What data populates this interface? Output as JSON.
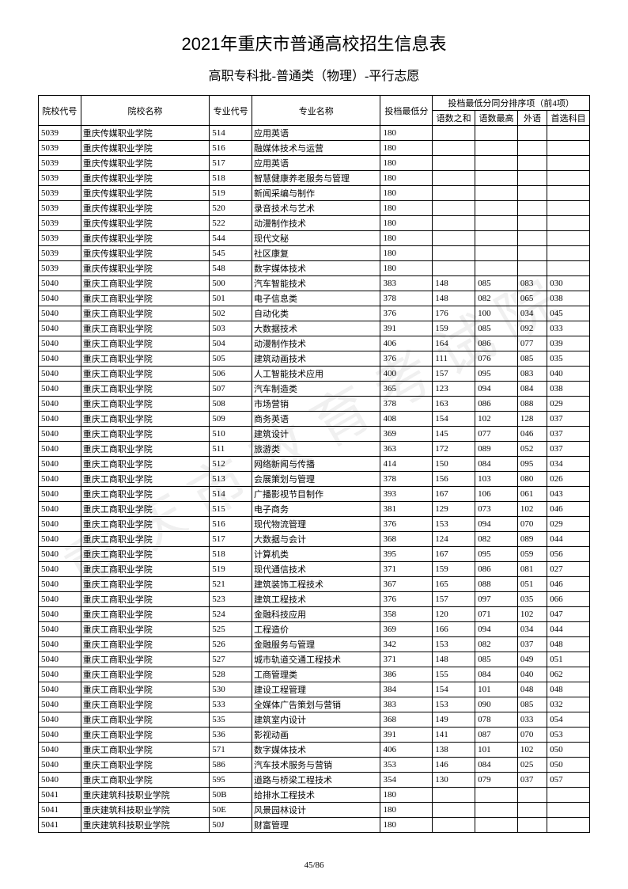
{
  "title": "2021年重庆市普通高校招生信息表",
  "subtitle": "高职专科批-普通类（物理）-平行志愿",
  "watermark": "重庆市教育考试院",
  "headers": {
    "school_code": "院校代号",
    "school_name": "院校名称",
    "major_code": "专业代号",
    "major_name": "专业名称",
    "min_score": "投档最低分",
    "tiebreak_group": "投档最低分同分排序项（前4项）",
    "sub1": "语数之和",
    "sub2": "语数最高",
    "sub3": "外语",
    "sub4": "首选科目"
  },
  "rows": [
    [
      "5039",
      "重庆传媒职业学院",
      "514",
      "应用英语",
      "180",
      "",
      "",
      "",
      ""
    ],
    [
      "5039",
      "重庆传媒职业学院",
      "516",
      "融媒体技术与运营",
      "180",
      "",
      "",
      "",
      ""
    ],
    [
      "5039",
      "重庆传媒职业学院",
      "517",
      "应用英语",
      "180",
      "",
      "",
      "",
      ""
    ],
    [
      "5039",
      "重庆传媒职业学院",
      "518",
      "智慧健康养老服务与管理",
      "180",
      "",
      "",
      "",
      ""
    ],
    [
      "5039",
      "重庆传媒职业学院",
      "519",
      "新闻采编与制作",
      "180",
      "",
      "",
      "",
      ""
    ],
    [
      "5039",
      "重庆传媒职业学院",
      "520",
      "录音技术与艺术",
      "180",
      "",
      "",
      "",
      ""
    ],
    [
      "5039",
      "重庆传媒职业学院",
      "522",
      "动漫制作技术",
      "180",
      "",
      "",
      "",
      ""
    ],
    [
      "5039",
      "重庆传媒职业学院",
      "544",
      "现代文秘",
      "180",
      "",
      "",
      "",
      ""
    ],
    [
      "5039",
      "重庆传媒职业学院",
      "545",
      "社区康复",
      "180",
      "",
      "",
      "",
      ""
    ],
    [
      "5039",
      "重庆传媒职业学院",
      "548",
      "数字媒体技术",
      "180",
      "",
      "",
      "",
      ""
    ],
    [
      "5040",
      "重庆工商职业学院",
      "500",
      "汽车智能技术",
      "383",
      "148",
      "085",
      "083",
      "030"
    ],
    [
      "5040",
      "重庆工商职业学院",
      "501",
      "电子信息类",
      "378",
      "148",
      "082",
      "065",
      "038"
    ],
    [
      "5040",
      "重庆工商职业学院",
      "502",
      "自动化类",
      "376",
      "176",
      "100",
      "034",
      "045"
    ],
    [
      "5040",
      "重庆工商职业学院",
      "503",
      "大数据技术",
      "391",
      "159",
      "085",
      "092",
      "033"
    ],
    [
      "5040",
      "重庆工商职业学院",
      "504",
      "动漫制作技术",
      "406",
      "164",
      "086",
      "077",
      "039"
    ],
    [
      "5040",
      "重庆工商职业学院",
      "505",
      "建筑动画技术",
      "376",
      "111",
      "076",
      "085",
      "035"
    ],
    [
      "5040",
      "重庆工商职业学院",
      "506",
      "人工智能技术应用",
      "400",
      "157",
      "095",
      "083",
      "040"
    ],
    [
      "5040",
      "重庆工商职业学院",
      "507",
      "汽车制造类",
      "365",
      "123",
      "094",
      "084",
      "038"
    ],
    [
      "5040",
      "重庆工商职业学院",
      "508",
      "市场营销",
      "378",
      "163",
      "086",
      "088",
      "029"
    ],
    [
      "5040",
      "重庆工商职业学院",
      "509",
      "商务英语",
      "408",
      "154",
      "102",
      "128",
      "037"
    ],
    [
      "5040",
      "重庆工商职业学院",
      "510",
      "建筑设计",
      "369",
      "145",
      "077",
      "046",
      "037"
    ],
    [
      "5040",
      "重庆工商职业学院",
      "511",
      "旅游类",
      "363",
      "172",
      "089",
      "052",
      "037"
    ],
    [
      "5040",
      "重庆工商职业学院",
      "512",
      "网络新闻与传播",
      "414",
      "150",
      "084",
      "095",
      "034"
    ],
    [
      "5040",
      "重庆工商职业学院",
      "513",
      "会展策划与管理",
      "378",
      "156",
      "103",
      "080",
      "026"
    ],
    [
      "5040",
      "重庆工商职业学院",
      "514",
      "广播影视节目制作",
      "393",
      "167",
      "106",
      "061",
      "043"
    ],
    [
      "5040",
      "重庆工商职业学院",
      "515",
      "电子商务",
      "381",
      "129",
      "073",
      "102",
      "046"
    ],
    [
      "5040",
      "重庆工商职业学院",
      "516",
      "现代物流管理",
      "376",
      "153",
      "094",
      "070",
      "029"
    ],
    [
      "5040",
      "重庆工商职业学院",
      "517",
      "大数据与会计",
      "368",
      "124",
      "082",
      "089",
      "044"
    ],
    [
      "5040",
      "重庆工商职业学院",
      "518",
      "计算机类",
      "395",
      "167",
      "095",
      "059",
      "056"
    ],
    [
      "5040",
      "重庆工商职业学院",
      "519",
      "现代通信技术",
      "371",
      "159",
      "086",
      "081",
      "027"
    ],
    [
      "5040",
      "重庆工商职业学院",
      "521",
      "建筑装饰工程技术",
      "367",
      "165",
      "088",
      "051",
      "046"
    ],
    [
      "5040",
      "重庆工商职业学院",
      "523",
      "建筑工程技术",
      "376",
      "157",
      "097",
      "035",
      "066"
    ],
    [
      "5040",
      "重庆工商职业学院",
      "524",
      "金融科技应用",
      "358",
      "120",
      "071",
      "102",
      "047"
    ],
    [
      "5040",
      "重庆工商职业学院",
      "525",
      "工程造价",
      "369",
      "166",
      "094",
      "034",
      "044"
    ],
    [
      "5040",
      "重庆工商职业学院",
      "526",
      "金融服务与管理",
      "342",
      "153",
      "082",
      "037",
      "048"
    ],
    [
      "5040",
      "重庆工商职业学院",
      "527",
      "城市轨道交通工程技术",
      "371",
      "148",
      "085",
      "049",
      "051"
    ],
    [
      "5040",
      "重庆工商职业学院",
      "528",
      "工商管理类",
      "386",
      "155",
      "084",
      "040",
      "062"
    ],
    [
      "5040",
      "重庆工商职业学院",
      "530",
      "建设工程管理",
      "384",
      "154",
      "101",
      "048",
      "048"
    ],
    [
      "5040",
      "重庆工商职业学院",
      "533",
      "全媒体广告策划与营销",
      "383",
      "153",
      "090",
      "085",
      "032"
    ],
    [
      "5040",
      "重庆工商职业学院",
      "535",
      "建筑室内设计",
      "368",
      "149",
      "078",
      "033",
      "054"
    ],
    [
      "5040",
      "重庆工商职业学院",
      "536",
      "影视动画",
      "391",
      "141",
      "087",
      "070",
      "053"
    ],
    [
      "5040",
      "重庆工商职业学院",
      "571",
      "数字媒体技术",
      "406",
      "138",
      "101",
      "102",
      "050"
    ],
    [
      "5040",
      "重庆工商职业学院",
      "586",
      "汽车技术服务与营销",
      "353",
      "146",
      "084",
      "025",
      "050"
    ],
    [
      "5040",
      "重庆工商职业学院",
      "595",
      "道路与桥梁工程技术",
      "354",
      "130",
      "079",
      "037",
      "057"
    ],
    [
      "5041",
      "重庆建筑科技职业学院",
      "50B",
      "给排水工程技术",
      "180",
      "",
      "",
      "",
      ""
    ],
    [
      "5041",
      "重庆建筑科技职业学院",
      "50E",
      "风景园林设计",
      "180",
      "",
      "",
      "",
      ""
    ],
    [
      "5041",
      "重庆建筑科技职业学院",
      "50J",
      "财富管理",
      "180",
      "",
      "",
      "",
      ""
    ]
  ],
  "page": "45/86"
}
